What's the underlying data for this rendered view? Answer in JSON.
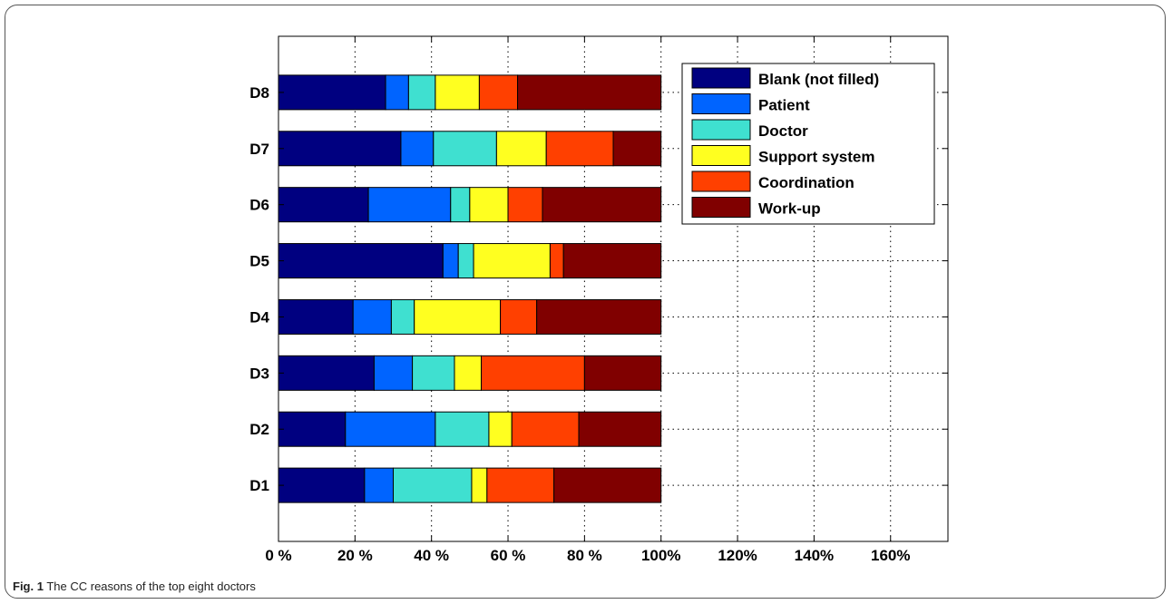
{
  "figure": {
    "label": "Fig. 1",
    "caption": "The CC reasons of the top eight doctors"
  },
  "chart_data": {
    "type": "bar",
    "orientation": "horizontal",
    "stacked": true,
    "categories": [
      "D1",
      "D2",
      "D3",
      "D4",
      "D5",
      "D6",
      "D7",
      "D8"
    ],
    "series": [
      {
        "name": "Blank (not filled)",
        "color": "#000080",
        "values": [
          22.5,
          17.5,
          25,
          19.5,
          43,
          23.5,
          32,
          28
        ]
      },
      {
        "name": "Patient",
        "color": "#0064ff",
        "values": [
          7.5,
          23.5,
          10,
          10,
          4,
          21.5,
          8.5,
          6
        ]
      },
      {
        "name": "Doctor",
        "color": "#3fe0d0",
        "values": [
          20.5,
          14,
          11,
          6,
          4,
          5,
          16.5,
          7
        ]
      },
      {
        "name": "Support system",
        "color": "#ffff20",
        "values": [
          4,
          6,
          7,
          22.5,
          20,
          10,
          13,
          11.5
        ]
      },
      {
        "name": "Coordination",
        "color": "#ff4000",
        "values": [
          17.5,
          17.5,
          27,
          9.5,
          3.5,
          9,
          17.5,
          10
        ]
      },
      {
        "name": "Work-up",
        "color": "#800000",
        "values": [
          28,
          21.5,
          20,
          32.5,
          25.5,
          31,
          12.5,
          37.5
        ]
      }
    ],
    "xlim": [
      0,
      175
    ],
    "xticks": [
      0,
      20,
      40,
      60,
      80,
      100,
      120,
      140,
      160
    ],
    "xtick_labels": [
      "0 %",
      "20 %",
      "40 %",
      "60 %",
      "80 %",
      "100%",
      "120%",
      "140%",
      "160%"
    ],
    "grid": true,
    "legend_position": "top-right",
    "title": "",
    "xlabel": "",
    "ylabel": ""
  }
}
